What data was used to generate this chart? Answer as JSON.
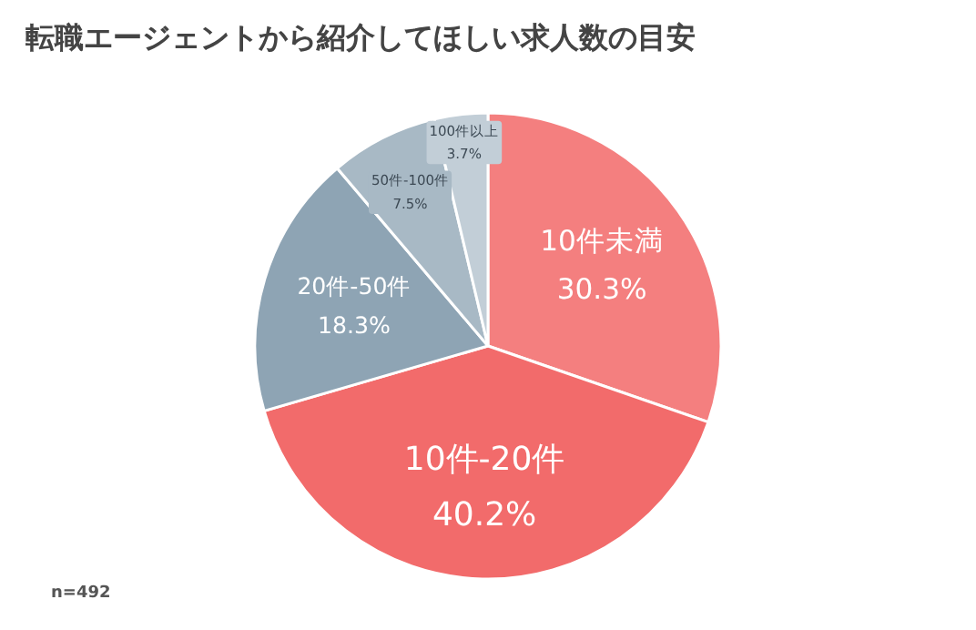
{
  "chart_data": {
    "type": "pie",
    "title": "転職エージェントから紹介してほしい求人数の目安",
    "categories": [
      "10件未満",
      "10件-20件",
      "20件-50件",
      "50件-100件",
      "100件以上"
    ],
    "values": [
      30.3,
      40.2,
      18.3,
      7.5,
      3.7
    ],
    "value_labels": [
      "30.3%",
      "40.2%",
      "18.3%",
      "7.5%",
      "3.7%"
    ],
    "colors": [
      "#f47f7f",
      "#f26b6b",
      "#8ea4b4",
      "#a8b9c5",
      "#c2ced7"
    ],
    "annotations": [
      "n=492"
    ]
  }
}
